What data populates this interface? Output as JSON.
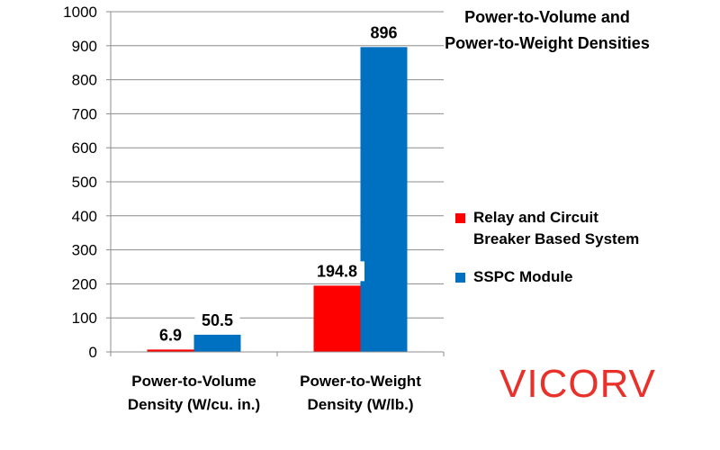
{
  "chart_data": {
    "type": "bar",
    "title": [
      "Power-to-Volume and",
      "Power-to-Weight Densities"
    ],
    "categories": [
      [
        "Power-to-Volume",
        "Density (W/cu. in.)"
      ],
      [
        "Power-to-Weight",
        "Density (W/lb.)"
      ]
    ],
    "series": [
      {
        "name": [
          "Relay and Circuit",
          "Breaker Based System"
        ],
        "color": "#ff0000",
        "values": [
          6.9,
          194.8
        ]
      },
      {
        "name": [
          "SSPC Module"
        ],
        "color": "#0070c0",
        "values": [
          50.5,
          896
        ]
      }
    ],
    "data_labels": [
      [
        "6.9",
        "194.8"
      ],
      [
        "50.5",
        "896"
      ]
    ],
    "ylim": [
      0,
      1000
    ],
    "yticks": [
      0,
      100,
      200,
      300,
      400,
      500,
      600,
      700,
      800,
      900,
      1000
    ],
    "grid": true,
    "legend_position": "right",
    "xlabel": "",
    "ylabel": ""
  },
  "watermark": "VICORV"
}
